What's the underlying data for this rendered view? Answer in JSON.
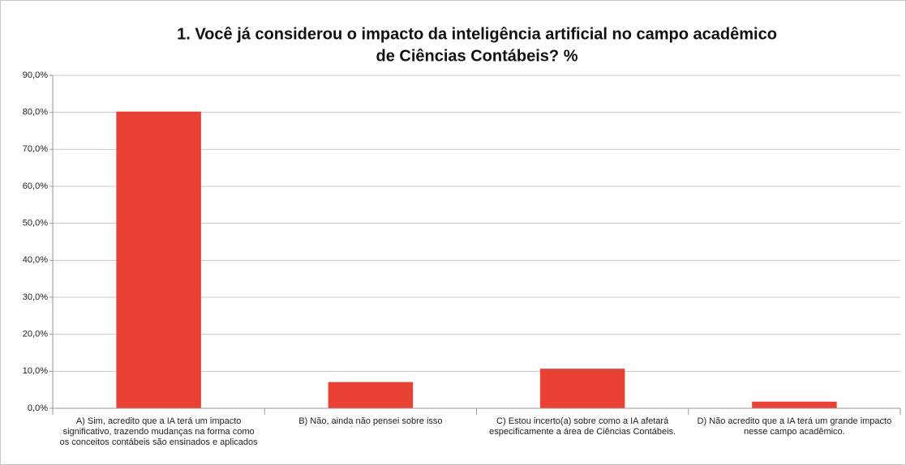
{
  "chart_data": {
    "type": "bar",
    "title": [
      "1. Você já considerou o impacto da inteligência artificial no campo acadêmico",
      "de Ciências Contábeis? %"
    ],
    "categories": [
      "A) Sim, acredito que a IA terá um impacto significativo, trazendo mudanças na forma como os conceitos contábeis são ensinados e aplicados",
      "B) Não, ainda não pensei sobre isso",
      "C) Estou incerto(a) sobre como a IA afetará especificamente a área de Ciências Contábeis.",
      "D) Não acredito que a IA terá um grande impacto nesse campo acadêmico."
    ],
    "values": [
      80.2,
      7.1,
      10.7,
      1.8
    ],
    "color": "#e94235",
    "ylim": [
      0,
      90
    ],
    "yticks": [
      {
        "value": 0,
        "label": "0,0%"
      },
      {
        "value": 10,
        "label": "10,0%"
      },
      {
        "value": 20,
        "label": "20,0%"
      },
      {
        "value": 30,
        "label": "30,0%"
      },
      {
        "value": 40,
        "label": "40,0%"
      },
      {
        "value": 50,
        "label": "50,0%"
      },
      {
        "value": 60,
        "label": "60,0%"
      },
      {
        "value": 70,
        "label": "70,0%"
      },
      {
        "value": 80,
        "label": "80,0%"
      },
      {
        "value": 90,
        "label": "90,0%"
      }
    ],
    "grid": true
  }
}
